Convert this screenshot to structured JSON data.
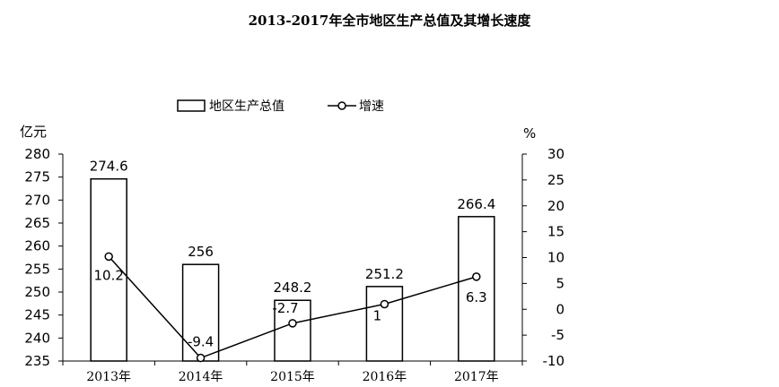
{
  "chart_data": {
    "type": "bar+line",
    "title": "2013-2017年全市地区生产总值及其增长速度",
    "categories": [
      "2013年",
      "2014年",
      "2015年",
      "2016年",
      "2017年"
    ],
    "series": [
      {
        "name": "地区生产总值",
        "type": "bar",
        "axis": "left",
        "values": [
          274.6,
          256,
          248.2,
          251.2,
          266.4
        ],
        "labels": [
          "274.6",
          "256",
          "248.2",
          "251.2",
          "266.4"
        ]
      },
      {
        "name": "增速",
        "type": "line",
        "axis": "right",
        "values": [
          10.2,
          -9.4,
          -2.7,
          1,
          6.3
        ],
        "labels": [
          "10.2",
          "-9.4",
          "-2.7",
          "1",
          "6.3"
        ]
      }
    ],
    "left_axis": {
      "unit": "亿元",
      "min": 235,
      "max": 280,
      "step": 5,
      "ticks": [
        "280",
        "275",
        "270",
        "265",
        "260",
        "255",
        "250",
        "245",
        "240",
        "235"
      ]
    },
    "right_axis": {
      "unit": "%",
      "min": -10,
      "max": 30,
      "step": 5,
      "ticks": [
        "30",
        "25",
        "20",
        "15",
        "10",
        "5",
        "0",
        "-5",
        "-10"
      ]
    },
    "legend": {
      "position": "top",
      "items": [
        "地区生产总值",
        "增速"
      ]
    },
    "grid": false
  }
}
